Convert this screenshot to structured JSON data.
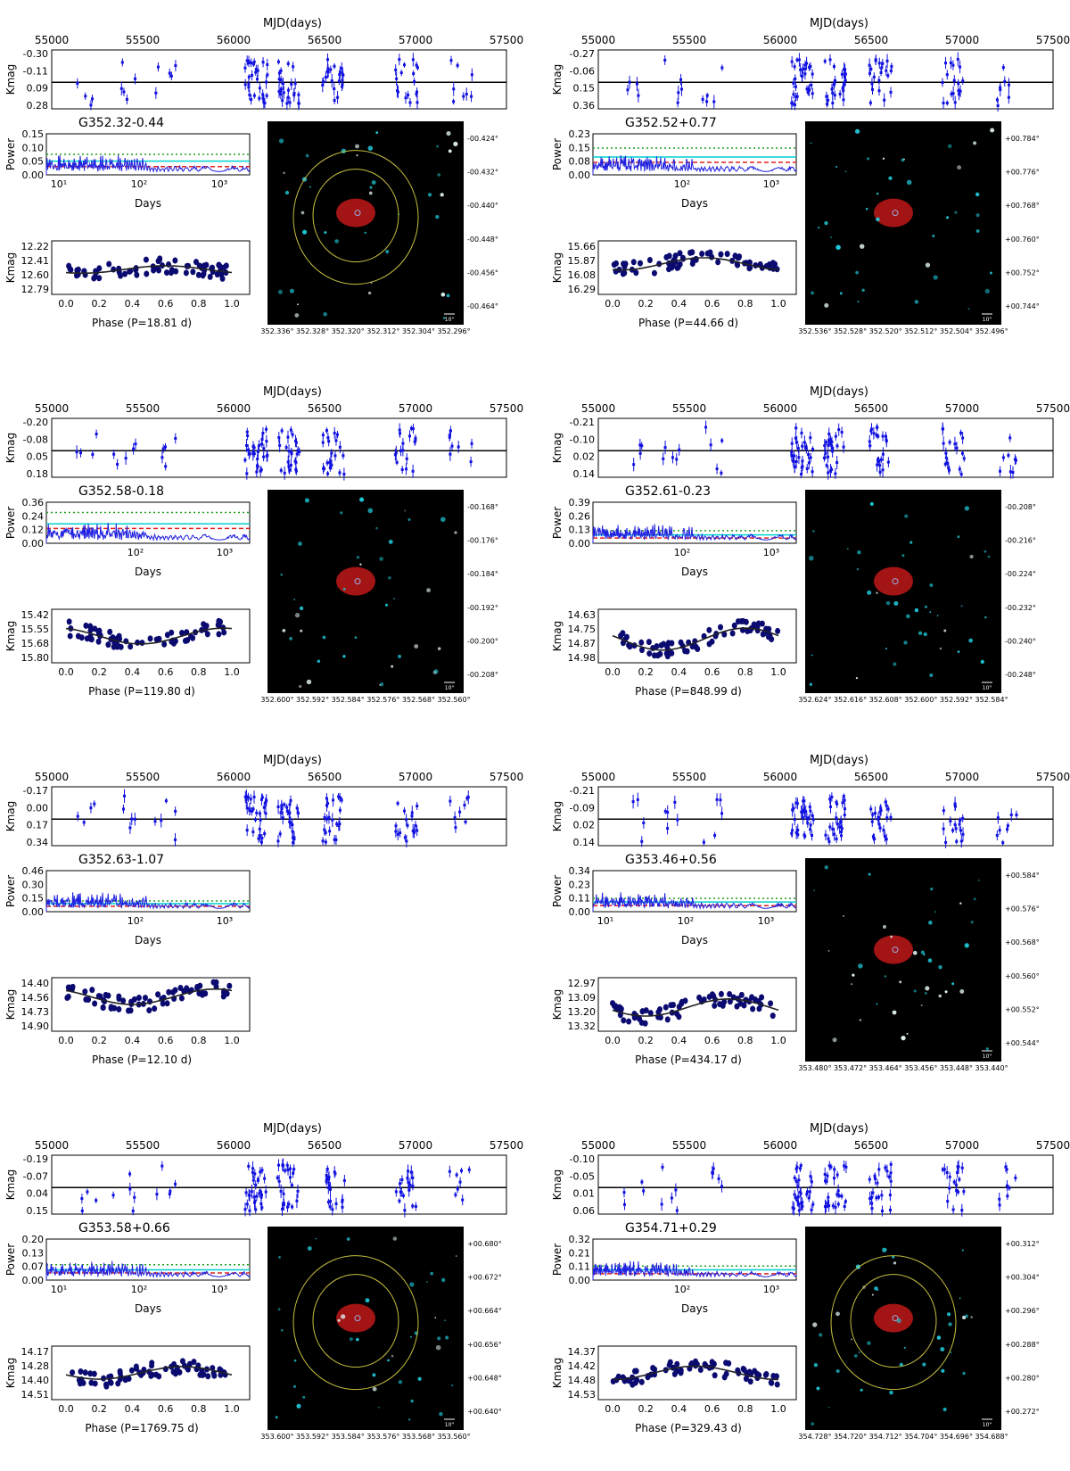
{
  "layout_note": "",
  "common": {
    "mjd_label": "MJD(days)",
    "mjd_ticks": [
      "55000",
      "55500",
      "56000",
      "56500",
      "57000",
      "57500"
    ],
    "kmag_label": "Kmag",
    "power_label": "Power",
    "days_label": "Days",
    "phase_ticks": [
      "0.0",
      "0.2",
      "0.4",
      "0.6",
      "0.8",
      "1.0"
    ],
    "arcsec_label": "10\"",
    "colors": {
      "points": "#1010e0",
      "phase_points": "#0a0a70",
      "fit": "#222222",
      "cyan": "#00d0d0",
      "green_dash": "#20a020",
      "red_dash": "#e02020",
      "contour": "#c8c040"
    }
  },
  "panels": [
    {
      "name": "G352.32-0.44",
      "mjd_kmag_ticks": [
        "-0.30",
        "-0.11",
        "0.09",
        "0.28"
      ],
      "power_ticks": [
        "0.15",
        "0.10",
        "0.05",
        "0.00"
      ],
      "days_ticks": [
        "10¹",
        "10²",
        "10³"
      ],
      "phase_kmag_ticks": [
        "12.22",
        "12.41",
        "12.60",
        "12.79"
      ],
      "phase_label": "Phase (P=18.81 d)",
      "has_image": true,
      "image_dec_ticks": [
        "-00.424°",
        "-00.432°",
        "-00.440°",
        "-00.448°",
        "-00.456°",
        "-00.464°"
      ],
      "image_ra_ticks": "352.336° 352.328° 352.320° 352.312° 352.304° 352.296°",
      "chart_data": {
        "type": "scatter",
        "title": "G352.32-0.44",
        "xlabel": "MJD(days)",
        "ylabel": "Kmag",
        "xlim": [
          55000,
          57500
        ],
        "ylim": [
          0.28,
          -0.3
        ],
        "period_days": 18.81,
        "phase_ylim": [
          12.79,
          12.22
        ],
        "phase_fit": {
          "mean": 12.53,
          "amp": 0.05,
          "phi0": 0.1
        },
        "power_ylim": [
          0,
          0.15
        ],
        "power_lines": {
          "cyan": 0.05,
          "green": 0.075,
          "red": 0.03
        }
      }
    },
    {
      "name": "G352.52+0.77",
      "mjd_kmag_ticks": [
        "-0.27",
        "-0.06",
        "0.15",
        "0.36"
      ],
      "power_ticks": [
        "0.23",
        "0.15",
        "0.08",
        "0.00"
      ],
      "days_ticks": [
        "10²",
        "10³"
      ],
      "phase_kmag_ticks": [
        "15.66",
        "15.87",
        "16.08",
        "16.29"
      ],
      "phase_label": "Phase (P=44.66 d)",
      "has_image": true,
      "image_dec_ticks": [
        "+00.784°",
        "+00.776°",
        "+00.768°",
        "+00.760°",
        "+00.752°",
        "+00.744°"
      ],
      "image_ra_ticks": "352.536° 352.528° 352.520° 352.512° 352.504° 352.496°",
      "chart_data": {
        "type": "scatter",
        "title": "G352.52+0.77",
        "xlabel": "MJD(days)",
        "ylabel": "Kmag",
        "xlim": [
          55000,
          57500
        ],
        "ylim": [
          0.36,
          -0.27
        ],
        "period_days": 44.66,
        "phase_ylim": [
          16.29,
          15.66
        ],
        "phase_fit": {
          "mean": 15.92,
          "amp": 0.09,
          "phi0": 0.05
        },
        "power_ylim": [
          0,
          0.23
        ],
        "power_lines": {
          "cyan": 0.1,
          "green": 0.15,
          "red": 0.07
        }
      }
    },
    {
      "name": "G352.58-0.18",
      "mjd_kmag_ticks": [
        "-0.20",
        "-0.08",
        "0.05",
        "0.18"
      ],
      "power_ticks": [
        "0.36",
        "0.24",
        "0.12",
        "0.00"
      ],
      "days_ticks": [
        "10²",
        "10³"
      ],
      "phase_kmag_ticks": [
        "15.42",
        "15.55",
        "15.68",
        "15.80"
      ],
      "phase_label": "Phase (P=119.80 d)",
      "has_image": true,
      "image_dec_ticks": [
        "-00.168°",
        "-00.176°",
        "-00.184°",
        "-00.192°",
        "-00.200°",
        "-00.208°"
      ],
      "image_ra_ticks": "352.600° 352.592° 352.584° 352.576° 352.568° 352.560°",
      "chart_data": {
        "type": "scatter",
        "title": "G352.58-0.18",
        "xlabel": "MJD(days)",
        "ylabel": "Kmag",
        "xlim": [
          55000,
          57500
        ],
        "ylim": [
          0.18,
          -0.2
        ],
        "period_days": 119.8,
        "phase_ylim": [
          15.8,
          15.42
        ],
        "phase_fit": {
          "mean": 15.61,
          "amp": 0.07,
          "phi0": 0.45
        },
        "power_ylim": [
          0,
          0.36
        ],
        "power_lines": {
          "cyan": 0.17,
          "green": 0.27,
          "red": 0.13
        }
      }
    },
    {
      "name": "G352.61-0.23",
      "mjd_kmag_ticks": [
        "-0.21",
        "-0.10",
        "0.02",
        "0.14"
      ],
      "power_ticks": [
        "0.39",
        "0.26",
        "0.13",
        "0.00"
      ],
      "days_ticks": [
        "10²",
        "10³"
      ],
      "phase_kmag_ticks": [
        "14.63",
        "14.75",
        "14.87",
        "14.98"
      ],
      "phase_label": "Phase (P=848.99 d)",
      "has_image": true,
      "image_dec_ticks": [
        "-00.208°",
        "-00.216°",
        "-00.224°",
        "-00.232°",
        "-00.240°",
        "-00.248°"
      ],
      "image_ra_ticks": "352.624° 352.616° 352.608° 352.600° 352.592° 352.584°",
      "chart_data": {
        "type": "scatter",
        "title": "G352.61-0.23",
        "xlabel": "MJD(days)",
        "ylabel": "Kmag",
        "xlim": [
          55000,
          57500
        ],
        "ylim": [
          0.14,
          -0.21
        ],
        "period_days": 848.99,
        "phase_ylim": [
          14.98,
          14.63
        ],
        "phase_fit": {
          "mean": 14.83,
          "amp": 0.09,
          "phi0": 0.3
        },
        "power_ylim": [
          0,
          0.39
        ],
        "power_lines": {
          "cyan": 0.08,
          "green": 0.12,
          "red": 0.05
        }
      }
    },
    {
      "name": "G352.63-1.07",
      "mjd_kmag_ticks": [
        "-0.17",
        "0.00",
        "0.17",
        "0.34"
      ],
      "power_ticks": [
        "0.46",
        "0.30",
        "0.15",
        "0.00"
      ],
      "days_ticks": [
        "10²",
        "10³"
      ],
      "phase_kmag_ticks": [
        "14.40",
        "14.56",
        "14.73",
        "14.90"
      ],
      "phase_label": "Phase (P=12.10 d)",
      "has_image": false,
      "image_dec_ticks": [],
      "image_ra_ticks": "",
      "chart_data": {
        "type": "scatter",
        "title": "G352.63-1.07",
        "xlabel": "MJD(days)",
        "ylabel": "Kmag",
        "xlim": [
          55000,
          57500
        ],
        "ylim": [
          0.34,
          -0.17
        ],
        "period_days": 12.1,
        "phase_ylim": [
          14.9,
          14.4
        ],
        "phase_fit": {
          "mean": 14.56,
          "amp": 0.09,
          "phi0": 0.4
        },
        "power_ylim": [
          0,
          0.46
        ],
        "power_lines": {
          "cyan": 0.09,
          "green": 0.12,
          "red": 0.06
        }
      }
    },
    {
      "name": "G353.46+0.56",
      "mjd_kmag_ticks": [
        "-0.21",
        "-0.09",
        "0.02",
        "0.14"
      ],
      "power_ticks": [
        "0.34",
        "0.23",
        "0.11",
        "0.00"
      ],
      "days_ticks": [
        "10¹",
        "10²",
        "10³"
      ],
      "phase_kmag_ticks": [
        "12.97",
        "13.09",
        "13.20",
        "13.32"
      ],
      "phase_label": "Phase (P=434.17 d)",
      "has_image": true,
      "image_dec_ticks": [
        "+00.584°",
        "+00.576°",
        "+00.568°",
        "+00.560°",
        "+00.552°",
        "+00.544°"
      ],
      "image_ra_ticks": "353.480° 353.472° 353.464° 353.456° 353.448° 353.440°",
      "chart_data": {
        "type": "scatter",
        "title": "G353.46+0.56",
        "xlabel": "MJD(days)",
        "ylabel": "Kmag",
        "xlim": [
          55000,
          57500
        ],
        "ylim": [
          0.14,
          -0.21
        ],
        "period_days": 434.17,
        "phase_ylim": [
          13.32,
          12.97
        ],
        "phase_fit": {
          "mean": 13.17,
          "amp": 0.07,
          "phi0": 0.2
        },
        "power_ylim": [
          0,
          0.34
        ],
        "power_lines": {
          "cyan": 0.08,
          "green": 0.11,
          "red": 0.05
        }
      }
    },
    {
      "name": "G353.58+0.66",
      "mjd_kmag_ticks": [
        "-0.19",
        "-0.07",
        "0.04",
        "0.15"
      ],
      "power_ticks": [
        "0.20",
        "0.13",
        "0.07",
        "0.00"
      ],
      "days_ticks": [
        "10¹",
        "10²",
        "10³"
      ],
      "phase_kmag_ticks": [
        "14.17",
        "14.28",
        "14.40",
        "14.51"
      ],
      "phase_label": "Phase (P=1769.75 d)",
      "has_image": true,
      "image_dec_ticks": [
        "+00.680°",
        "+00.672°",
        "+00.664°",
        "+00.656°",
        "+00.648°",
        "+00.640°"
      ],
      "image_ra_ticks": "353.600° 353.592° 353.584° 353.576° 353.568° 353.560°",
      "chart_data": {
        "type": "scatter",
        "title": "G353.58+0.66",
        "xlabel": "MJD(days)",
        "ylabel": "Kmag",
        "xlim": [
          55000,
          57500
        ],
        "ylim": [
          0.15,
          -0.19
        ],
        "period_days": 1769.75,
        "phase_ylim": [
          14.51,
          14.17
        ],
        "phase_fit": {
          "mean": 14.34,
          "amp": 0.05,
          "phi0": 0.2
        },
        "power_ylim": [
          0,
          0.2
        ],
        "power_lines": {
          "cyan": 0.05,
          "green": 0.075,
          "red": 0.035
        }
      }
    },
    {
      "name": "G354.71+0.29",
      "mjd_kmag_ticks": [
        "-0.10",
        "-0.05",
        "0.01",
        "0.06"
      ],
      "power_ticks": [
        "0.32",
        "0.21",
        "0.11",
        "0.00"
      ],
      "days_ticks": [
        "10²",
        "10³"
      ],
      "phase_kmag_ticks": [
        "14.37",
        "14.42",
        "14.48",
        "14.53"
      ],
      "phase_label": "Phase (P=329.43 d)",
      "has_image": true,
      "image_dec_ticks": [
        "+00.312°",
        "+00.304°",
        "+00.296°",
        "+00.288°",
        "+00.280°",
        "+00.272°"
      ],
      "image_ra_ticks": "354.728° 354.720° 354.712° 354.704° 354.696° 354.688°",
      "chart_data": {
        "type": "scatter",
        "title": "G354.71+0.29",
        "xlabel": "MJD(days)",
        "ylabel": "Kmag",
        "xlim": [
          55000,
          57500
        ],
        "ylim": [
          0.06,
          -0.1
        ],
        "period_days": 329.43,
        "phase_ylim": [
          14.53,
          14.37
        ],
        "phase_fit": {
          "mean": 14.45,
          "amp": 0.025,
          "phi0": 0.0
        },
        "power_ylim": [
          0,
          0.32
        ],
        "power_lines": {
          "cyan": 0.08,
          "green": 0.11,
          "red": 0.05
        }
      }
    }
  ]
}
